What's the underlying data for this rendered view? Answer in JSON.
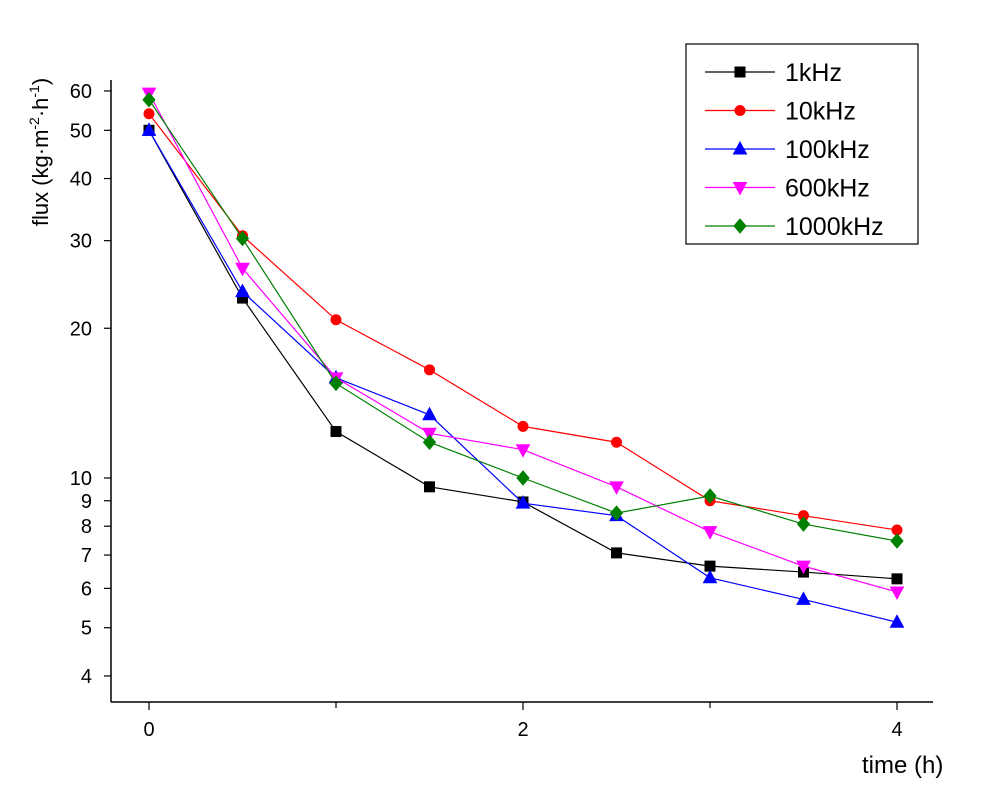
{
  "chart_data": {
    "type": "line",
    "title": "",
    "xlabel": "time (h)",
    "ylabel": {
      "base": "flux (kg·m",
      "sup1": "-2",
      "mid": "·h",
      "sup2": "-1",
      "end": ")"
    },
    "yscale": "log",
    "xlim": [
      -0.2,
      4.2
    ],
    "ylim": [
      3.6,
      65
    ],
    "x_ticks": [
      0,
      2,
      4
    ],
    "x_tick_labels": [
      "0",
      "2",
      "4"
    ],
    "x_minor_ticks": [
      1,
      3
    ],
    "y_ticks": [
      4,
      5,
      6,
      7,
      8,
      9,
      10,
      20,
      30,
      40,
      50,
      60
    ],
    "y_tick_labels": [
      "4",
      "5",
      "6",
      "7",
      "8",
      "9",
      "10",
      "20",
      "30",
      "40",
      "50",
      "60"
    ],
    "grid": false,
    "legend_position": "top-right",
    "x": [
      0,
      0.5,
      1,
      1.5,
      2,
      2.5,
      3,
      3.5,
      4
    ],
    "series": [
      {
        "name": "1kHz",
        "color": "#000000",
        "marker": "square",
        "values": [
          50,
          23,
          12.4,
          9.6,
          8.95,
          7.07,
          6.65,
          6.47,
          6.27
        ]
      },
      {
        "name": "10kHz",
        "color": "#ff0000",
        "marker": "circle",
        "values": [
          54,
          30.7,
          20.8,
          16.5,
          12.7,
          11.8,
          9.0,
          8.4,
          7.86
        ]
      },
      {
        "name": "100kHz",
        "color": "#0000ff",
        "marker": "triangle-up",
        "values": [
          50,
          23.7,
          15.9,
          13.4,
          8.9,
          8.4,
          6.3,
          5.7,
          5.13
        ]
      },
      {
        "name": "600kHz",
        "color": "#ff00ff",
        "marker": "triangle-down",
        "values": [
          59.4,
          26.4,
          15.9,
          12.3,
          11.4,
          9.6,
          7.8,
          6.65,
          5.9
        ]
      },
      {
        "name": "1000kHz",
        "color": "#008000",
        "marker": "diamond",
        "values": [
          57.6,
          30.3,
          15.5,
          11.8,
          10,
          8.5,
          9.2,
          8.08,
          7.47
        ]
      }
    ]
  }
}
